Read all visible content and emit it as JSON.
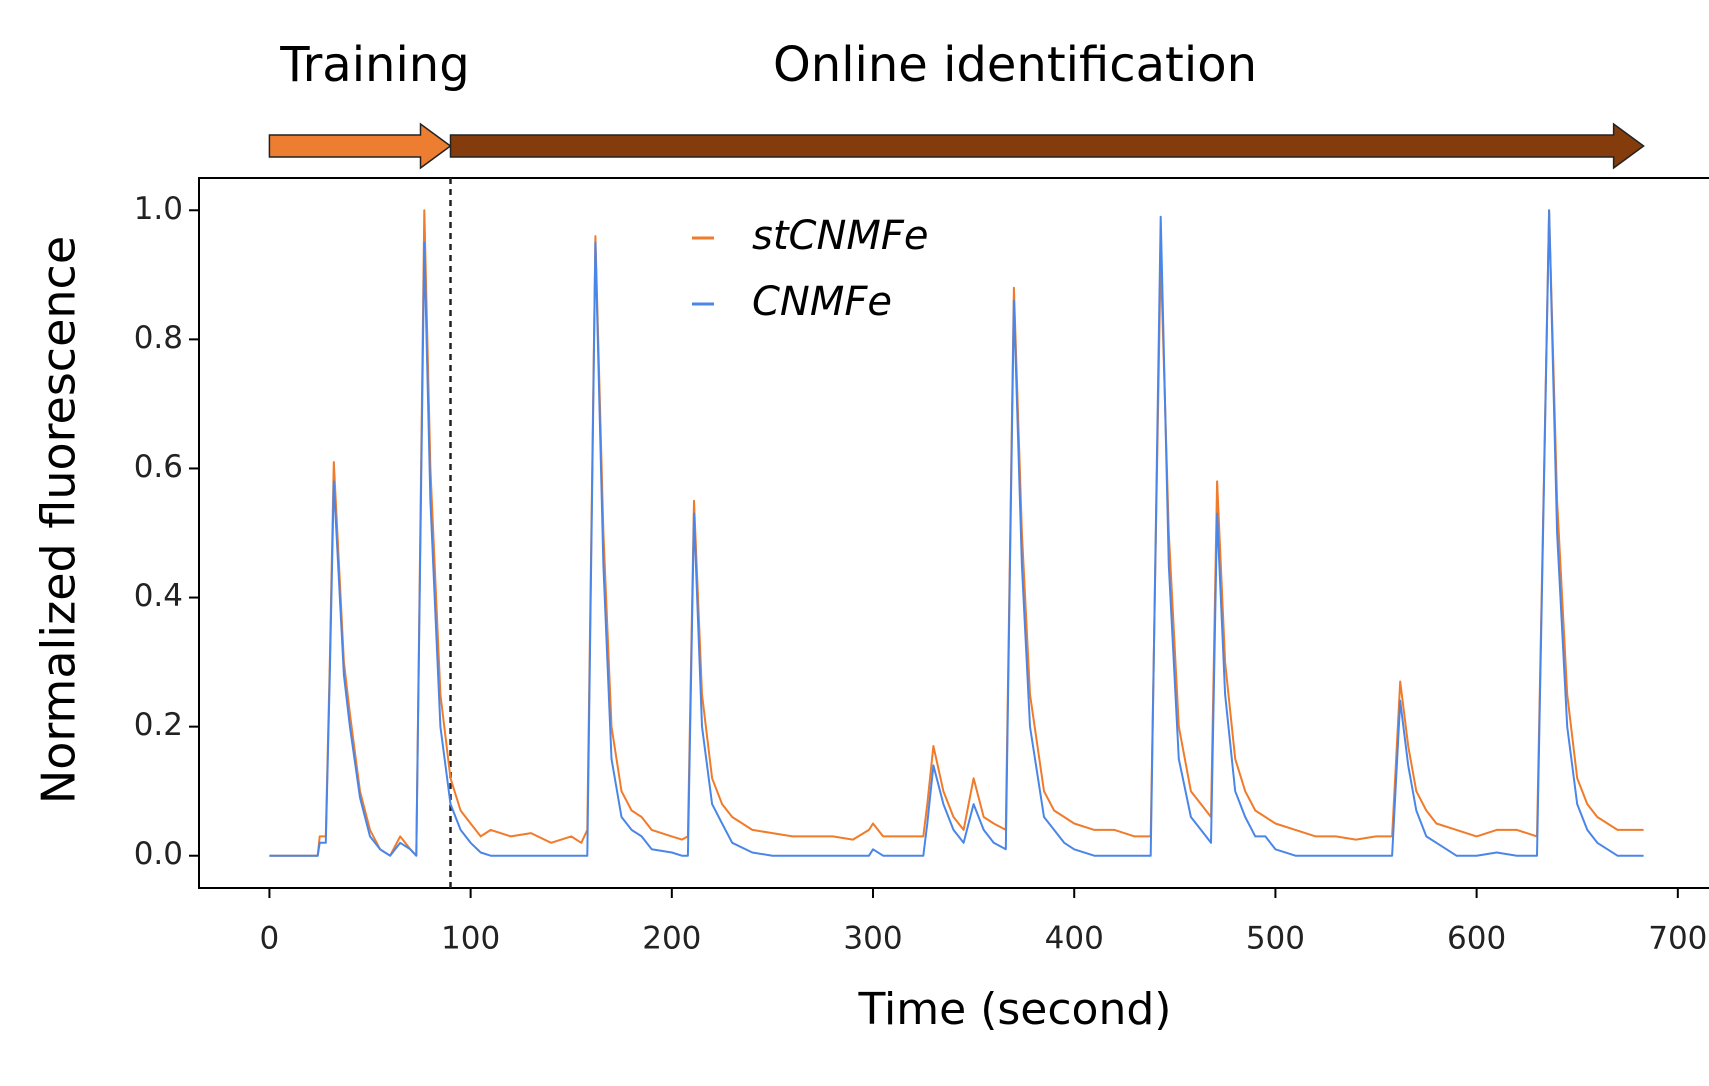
{
  "chart_data": {
    "type": "line",
    "annotations": [
      "Training",
      "Online identification"
    ],
    "training_end": 90,
    "xlabel": "Time (second)",
    "ylabel": "Normalized fluorescence",
    "xlim": [
      -35,
      715
    ],
    "ylim": [
      -0.05,
      1.05
    ],
    "xticks": [
      0,
      100,
      200,
      300,
      400,
      500,
      600,
      700
    ],
    "yticks": [
      {
        "value": 0,
        "label": "0.0"
      },
      0.2,
      0.4,
      0.6,
      0.8,
      {
        "value": 1,
        "label": "1.0"
      }
    ],
    "legend": "upper center",
    "x": [
      0,
      24,
      25,
      28,
      30,
      32,
      37,
      40,
      45,
      50,
      55,
      60,
      65,
      70,
      73,
      77,
      80,
      85,
      90,
      95,
      100,
      105,
      110,
      120,
      130,
      140,
      150,
      155,
      158,
      162,
      166,
      170,
      175,
      180,
      185,
      190,
      200,
      205,
      208,
      211,
      215,
      220,
      225,
      230,
      240,
      250,
      260,
      270,
      280,
      290,
      298,
      300,
      305,
      315,
      325,
      327,
      330,
      335,
      340,
      345,
      350,
      355,
      360,
      366,
      370,
      374,
      378,
      385,
      390,
      395,
      400,
      410,
      420,
      430,
      438,
      443,
      447,
      452,
      458,
      463,
      468,
      471,
      475,
      480,
      485,
      490,
      495,
      500,
      510,
      520,
      530,
      540,
      550,
      558,
      562,
      566,
      570,
      575,
      580,
      590,
      600,
      610,
      620,
      630,
      636,
      640,
      645,
      650,
      655,
      660,
      670,
      683
    ],
    "series": [
      {
        "name": "stCNMFe",
        "color": "#f07b2a",
        "values": [
          0,
          0,
          0.03,
          0.03,
          0.3,
          0.61,
          0.3,
          0.22,
          0.1,
          0.04,
          0.01,
          0,
          0.03,
          0.01,
          0,
          1.0,
          0.6,
          0.25,
          0.12,
          0.07,
          0.05,
          0.03,
          0.04,
          0.03,
          0.035,
          0.02,
          0.03,
          0.02,
          0.04,
          0.96,
          0.5,
          0.2,
          0.1,
          0.07,
          0.06,
          0.04,
          0.03,
          0.025,
          0.03,
          0.55,
          0.25,
          0.12,
          0.08,
          0.06,
          0.04,
          0.035,
          0.03,
          0.03,
          0.03,
          0.025,
          0.04,
          0.05,
          0.03,
          0.03,
          0.03,
          0.08,
          0.17,
          0.1,
          0.06,
          0.04,
          0.12,
          0.06,
          0.05,
          0.04,
          0.88,
          0.5,
          0.25,
          0.1,
          0.07,
          0.06,
          0.05,
          0.04,
          0.04,
          0.03,
          0.03,
          0.93,
          0.5,
          0.2,
          0.1,
          0.08,
          0.06,
          0.58,
          0.3,
          0.15,
          0.1,
          0.07,
          0.06,
          0.05,
          0.04,
          0.03,
          0.03,
          0.025,
          0.03,
          0.03,
          0.27,
          0.17,
          0.1,
          0.07,
          0.05,
          0.04,
          0.03,
          0.04,
          0.04,
          0.03,
          1.0,
          0.55,
          0.25,
          0.12,
          0.08,
          0.06,
          0.04,
          0.04
        ]
      },
      {
        "name": "CNMFe",
        "color": "#4a86e8",
        "values": [
          0,
          0,
          0.02,
          0.02,
          0.28,
          0.58,
          0.28,
          0.2,
          0.09,
          0.03,
          0.01,
          0,
          0.02,
          0.01,
          0,
          0.95,
          0.55,
          0.2,
          0.08,
          0.04,
          0.02,
          0.005,
          0,
          0,
          0,
          0,
          0,
          0,
          0,
          0.95,
          0.45,
          0.15,
          0.06,
          0.04,
          0.03,
          0.01,
          0.005,
          0,
          0,
          0.53,
          0.2,
          0.08,
          0.05,
          0.02,
          0.005,
          0,
          0,
          0,
          0,
          0,
          0,
          0.01,
          0,
          0,
          0,
          0.05,
          0.14,
          0.08,
          0.04,
          0.02,
          0.08,
          0.04,
          0.02,
          0.01,
          0.86,
          0.45,
          0.2,
          0.06,
          0.04,
          0.02,
          0.01,
          0,
          0,
          0,
          0,
          0.99,
          0.45,
          0.15,
          0.06,
          0.04,
          0.02,
          0.53,
          0.25,
          0.1,
          0.06,
          0.03,
          0.03,
          0.01,
          0,
          0,
          0,
          0,
          0,
          0,
          0.24,
          0.14,
          0.07,
          0.03,
          0.02,
          0,
          0,
          0.005,
          0,
          0,
          1.0,
          0.5,
          0.2,
          0.08,
          0.04,
          0.02,
          0,
          0
        ]
      }
    ]
  }
}
